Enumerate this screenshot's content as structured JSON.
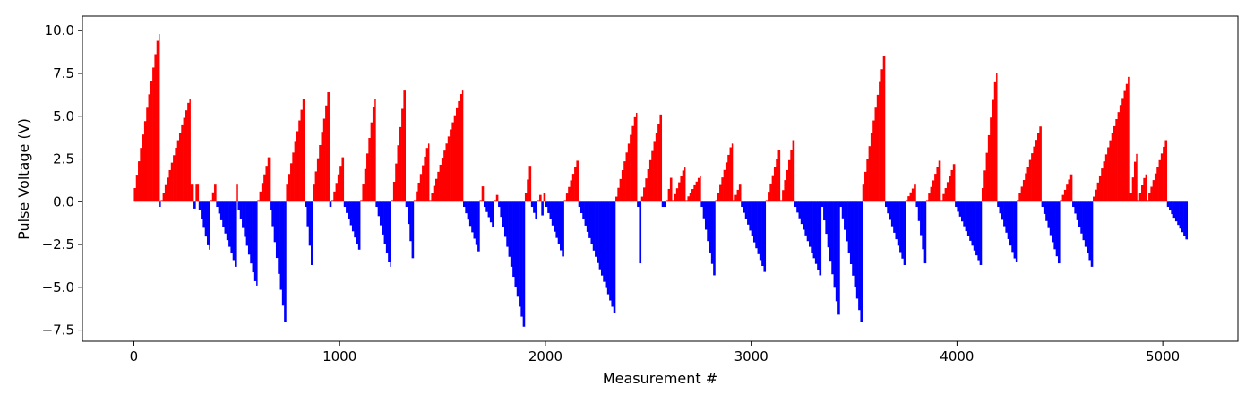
{
  "chart_data": {
    "type": "bar",
    "title": "",
    "xlabel": "Measurement #",
    "ylabel": "Pulse Voltage (V)",
    "xlim": [
      -250,
      5365
    ],
    "ylim": [
      -8.15,
      10.85
    ],
    "xticks": [
      0,
      1000,
      2000,
      3000,
      4000,
      5000
    ],
    "xtick_labels": [
      "0",
      "1000",
      "2000",
      "3000",
      "4000",
      "5000"
    ],
    "yticks": [
      -7.5,
      -5.0,
      -2.5,
      0.0,
      2.5,
      5.0,
      7.5,
      10.0
    ],
    "ytick_labels": [
      "−7.5",
      "−5.0",
      "−2.5",
      "0.0",
      "2.5",
      "5.0",
      "7.5",
      "10.0"
    ],
    "grid": false,
    "legend": "none",
    "colors": {
      "positive": "#ff0000",
      "negative": "#0000ff"
    },
    "n_measurements": 5120,
    "segments": [
      [
        0,
        125,
        0.8,
        9.8
      ],
      [
        125,
        130,
        -0.3,
        -0.3
      ],
      [
        130,
        275,
        0.1,
        6.0
      ],
      [
        275,
        290,
        1.0,
        1.0
      ],
      [
        290,
        300,
        -0.3,
        -0.4
      ],
      [
        300,
        315,
        1.0,
        1.0
      ],
      [
        315,
        370,
        -0.5,
        -2.8
      ],
      [
        370,
        400,
        0.1,
        1.0
      ],
      [
        400,
        500,
        -0.3,
        -3.8
      ],
      [
        500,
        505,
        1.0,
        1.0
      ],
      [
        505,
        600,
        -0.5,
        -4.9
      ],
      [
        600,
        660,
        0.1,
        2.6
      ],
      [
        660,
        740,
        -0.5,
        -7.0
      ],
      [
        740,
        830,
        1.0,
        6.0
      ],
      [
        830,
        870,
        -0.3,
        -3.7
      ],
      [
        870,
        950,
        1.0,
        6.4
      ],
      [
        950,
        960,
        -0.3,
        -0.3
      ],
      [
        960,
        1020,
        0.1,
        2.6
      ],
      [
        1020,
        1100,
        -0.3,
        -2.8
      ],
      [
        1100,
        1175,
        0.1,
        6.0
      ],
      [
        1175,
        1250,
        -0.3,
        -3.8
      ],
      [
        1250,
        1320,
        0.1,
        6.5
      ],
      [
        1320,
        1360,
        -0.3,
        -3.3
      ],
      [
        1360,
        1435,
        0.1,
        3.4
      ],
      [
        1435,
        1600,
        0.1,
        6.5
      ],
      [
        1600,
        1680,
        -0.3,
        -2.9
      ],
      [
        1680,
        1700,
        0.1,
        0.9
      ],
      [
        1700,
        1750,
        -0.3,
        -1.5
      ],
      [
        1750,
        1770,
        0.1,
        0.4
      ],
      [
        1770,
        1900,
        -0.3,
        -7.3
      ],
      [
        1900,
        1930,
        0.5,
        2.1
      ],
      [
        1930,
        1960,
        -0.3,
        -1.0
      ],
      [
        1960,
        1980,
        0.1,
        0.4
      ],
      [
        1980,
        1990,
        -0.3,
        -0.8
      ],
      [
        1990,
        2000,
        0.1,
        0.5
      ],
      [
        2000,
        2090,
        -0.3,
        -3.2
      ],
      [
        2090,
        2160,
        0.1,
        2.4
      ],
      [
        2160,
        2340,
        -0.3,
        -6.5
      ],
      [
        2340,
        2445,
        0.3,
        5.2
      ],
      [
        2445,
        2465,
        -0.3,
        -3.6
      ],
      [
        2465,
        2565,
        0.3,
        5.1
      ],
      [
        2565,
        2585,
        -0.3,
        -0.3
      ],
      [
        2585,
        2615,
        0.1,
        1.4
      ],
      [
        2615,
        2680,
        0.1,
        2.0
      ],
      [
        2680,
        2755,
        0.1,
        1.5
      ],
      [
        2755,
        2825,
        -0.3,
        -4.3
      ],
      [
        2825,
        2910,
        0.1,
        3.4
      ],
      [
        2910,
        2950,
        0.1,
        1.0
      ],
      [
        2950,
        3070,
        -0.3,
        -4.1
      ],
      [
        3070,
        3140,
        0.1,
        3.0
      ],
      [
        3140,
        3210,
        0.1,
        3.6
      ],
      [
        3210,
        3340,
        -0.3,
        -4.3
      ],
      [
        3340,
        3430,
        -0.3,
        -6.6
      ],
      [
        3430,
        3540,
        -0.3,
        -7.0
      ],
      [
        3540,
        3650,
        1.0,
        8.5
      ],
      [
        3650,
        3750,
        -0.3,
        -3.7
      ],
      [
        3750,
        3800,
        0.1,
        1.0
      ],
      [
        3800,
        3850,
        -0.3,
        -3.6
      ],
      [
        3850,
        3920,
        0.1,
        2.4
      ],
      [
        3920,
        3990,
        0.1,
        2.2
      ],
      [
        3990,
        4120,
        -0.3,
        -3.7
      ],
      [
        4120,
        4195,
        0.8,
        7.5
      ],
      [
        4195,
        4290,
        -0.3,
        -3.5
      ],
      [
        4290,
        4410,
        0.1,
        4.4
      ],
      [
        4410,
        4500,
        -0.3,
        -3.6
      ],
      [
        4500,
        4560,
        0.1,
        1.6
      ],
      [
        4560,
        4660,
        -0.3,
        -3.8
      ],
      [
        4660,
        4840,
        0.3,
        7.3
      ],
      [
        4840,
        4875,
        0.5,
        2.8
      ],
      [
        4875,
        4920,
        0.1,
        1.6
      ],
      [
        4920,
        5020,
        0.1,
        3.6
      ],
      [
        5020,
        5120,
        -0.3,
        -2.2
      ]
    ]
  }
}
